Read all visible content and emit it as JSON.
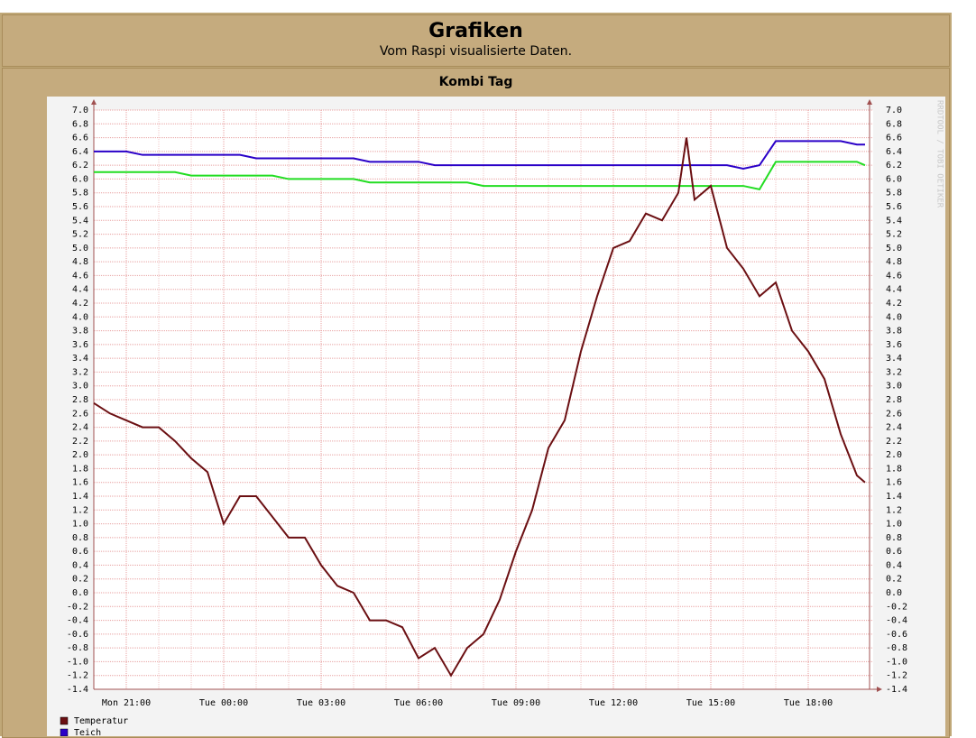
{
  "header": {
    "title": "Grafiken",
    "subtitle": "Vom Raspi visualisierte Daten."
  },
  "panel": {
    "title": "Kombi Tag",
    "watermark": "RRDTOOL / TOBI OETIKER"
  },
  "chart_data": {
    "type": "line",
    "x": [
      20,
      20.5,
      21,
      21.5,
      22,
      22.5,
      23,
      23.5,
      24,
      24.5,
      25,
      25.5,
      26,
      26.5,
      27,
      27.5,
      28,
      28.5,
      29,
      29.5,
      30,
      30.5,
      31,
      31.5,
      32,
      32.5,
      33,
      33.5,
      34,
      34.5,
      35,
      35.5,
      36,
      36.5,
      37,
      37.5,
      38,
      38.25,
      38.5,
      39,
      39.5,
      40,
      40.5,
      41,
      41.5,
      42,
      42.5,
      43,
      43.5,
      43.75
    ],
    "series": [
      {
        "name": "Temperatur",
        "color": "#6b0f12",
        "values": [
          2.75,
          2.6,
          2.5,
          2.4,
          2.4,
          2.2,
          1.95,
          1.75,
          1.0,
          1.4,
          1.4,
          1.1,
          0.8,
          0.8,
          0.4,
          0.1,
          0.0,
          -0.4,
          -0.4,
          -0.5,
          -0.95,
          -0.8,
          -1.2,
          -0.8,
          -0.6,
          -0.1,
          0.6,
          1.2,
          2.1,
          2.5,
          3.5,
          4.3,
          5.0,
          5.1,
          5.5,
          5.4,
          5.8,
          6.6,
          5.7,
          5.9,
          5.0,
          4.7,
          4.3,
          4.5,
          3.8,
          3.5,
          3.1,
          2.3,
          1.7,
          1.6
        ]
      },
      {
        "name": "Teich",
        "color": "#2a00c8",
        "values": [
          6.4,
          6.4,
          6.4,
          6.35,
          6.35,
          6.35,
          6.35,
          6.35,
          6.35,
          6.35,
          6.3,
          6.3,
          6.3,
          6.3,
          6.3,
          6.3,
          6.3,
          6.25,
          6.25,
          6.25,
          6.25,
          6.2,
          6.2,
          6.2,
          6.2,
          6.2,
          6.2,
          6.2,
          6.2,
          6.2,
          6.2,
          6.2,
          6.2,
          6.2,
          6.2,
          6.2,
          6.2,
          6.2,
          6.2,
          6.2,
          6.2,
          6.15,
          6.2,
          6.55,
          6.55,
          6.55,
          6.55,
          6.55,
          6.5,
          6.5
        ]
      },
      {
        "color": "#22dd22",
        "values": [
          6.1,
          6.1,
          6.1,
          6.1,
          6.1,
          6.1,
          6.05,
          6.05,
          6.05,
          6.05,
          6.05,
          6.05,
          6.0,
          6.0,
          6.0,
          6.0,
          6.0,
          5.95,
          5.95,
          5.95,
          5.95,
          5.95,
          5.95,
          5.95,
          5.9,
          5.9,
          5.9,
          5.9,
          5.9,
          5.9,
          5.9,
          5.9,
          5.9,
          5.9,
          5.9,
          5.9,
          5.9,
          5.9,
          5.9,
          5.9,
          5.9,
          5.9,
          5.85,
          6.25,
          6.25,
          6.25,
          6.25,
          6.25,
          6.25,
          6.2
        ]
      }
    ],
    "xlim": [
      20,
      44
    ],
    "xticks": [
      {
        "value": 21,
        "label": "Mon 21:00"
      },
      {
        "value": 24,
        "label": "Tue 00:00"
      },
      {
        "value": 27,
        "label": "Tue 03:00"
      },
      {
        "value": 30,
        "label": "Tue 06:00"
      },
      {
        "value": 33,
        "label": "Tue 09:00"
      },
      {
        "value": 36,
        "label": "Tue 12:00"
      },
      {
        "value": 39,
        "label": "Tue 15:00"
      },
      {
        "value": 42,
        "label": "Tue 18:00"
      }
    ],
    "ylim": [
      -1.4,
      7.0
    ],
    "yticks": [
      {
        "value": -1.4,
        "label": "-1.4"
      },
      {
        "value": -1.2,
        "label": "-1.2"
      },
      {
        "value": -1.0,
        "label": "-1.0"
      },
      {
        "value": -0.8,
        "label": "-0.8"
      },
      {
        "value": -0.6,
        "label": "-0.6"
      },
      {
        "value": -0.4,
        "label": "-0.4"
      },
      {
        "value": -0.2,
        "label": "-0.2"
      },
      {
        "value": 0,
        "label": "0.0"
      },
      0.2,
      0.4,
      0.6,
      0.8,
      {
        "value": 1,
        "label": "1.0"
      },
      1.2,
      1.4,
      1.6,
      1.8,
      {
        "value": 2,
        "label": "2.0"
      },
      2.2,
      2.4,
      2.6,
      2.8,
      {
        "value": 3,
        "label": "3.0"
      },
      3.2,
      3.4,
      3.6,
      3.8,
      {
        "value": 4,
        "label": "4.0"
      },
      4.2,
      4.4,
      4.6,
      4.8,
      {
        "value": 5,
        "label": "5.0"
      },
      5.2,
      5.4,
      5.6,
      5.8,
      {
        "value": 6,
        "label": "6.0"
      },
      6.2,
      6.4,
      6.6,
      6.8,
      {
        "value": 7,
        "label": "7.0"
      }
    ],
    "grid": true
  }
}
